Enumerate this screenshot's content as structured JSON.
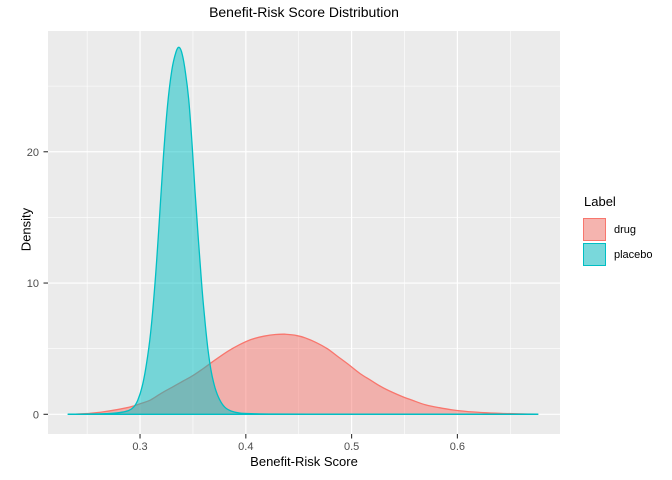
{
  "colors": {
    "background": "#FFFFFF",
    "panel": "#EBEBEB",
    "grid": "#FFFFFF",
    "tick_mark": "#333333",
    "tick_label": "#4D4D4D",
    "text": "#000000",
    "legend_key_bg": "#F2F2F2"
  },
  "chart_data": {
    "type": "area",
    "variant": "density",
    "title": "Benefit-Risk Score Distribution",
    "xlabel": "Benefit-Risk Score",
    "ylabel": "Density",
    "xlim": [
      0.213,
      0.697
    ],
    "ylim": [
      -1.5,
      29.2
    ],
    "grid": true,
    "x_ticks": [
      0.3,
      0.4,
      0.5,
      0.6
    ],
    "x_tick_labels": [
      "0.3",
      "0.4",
      "0.5",
      "0.6"
    ],
    "x_minor_ticks": [
      0.25,
      0.35,
      0.45,
      0.55,
      0.65
    ],
    "y_ticks": [
      0,
      10,
      20
    ],
    "y_tick_labels": [
      "0",
      "10",
      "20"
    ],
    "y_minor_ticks": [
      5,
      15,
      25
    ],
    "legend": {
      "title": "Label",
      "position": "right",
      "entries": [
        "drug",
        "placebo"
      ]
    },
    "series": [
      {
        "name": "drug",
        "color": "#F8766D",
        "fill_opacity": 0.5,
        "peak": {
          "x": 0.437,
          "density": 6.1
        },
        "points": [
          [
            0.24,
            0.02
          ],
          [
            0.252,
            0.07
          ],
          [
            0.265,
            0.18
          ],
          [
            0.278,
            0.35
          ],
          [
            0.29,
            0.55
          ],
          [
            0.3,
            0.8
          ],
          [
            0.31,
            1.1
          ],
          [
            0.32,
            1.6
          ],
          [
            0.33,
            2.05
          ],
          [
            0.34,
            2.5
          ],
          [
            0.35,
            2.95
          ],
          [
            0.36,
            3.5
          ],
          [
            0.372,
            4.2
          ],
          [
            0.383,
            4.8
          ],
          [
            0.394,
            5.3
          ],
          [
            0.405,
            5.7
          ],
          [
            0.417,
            5.95
          ],
          [
            0.428,
            6.08
          ],
          [
            0.437,
            6.1
          ],
          [
            0.447,
            6.02
          ],
          [
            0.457,
            5.8
          ],
          [
            0.467,
            5.45
          ],
          [
            0.477,
            5.0
          ],
          [
            0.487,
            4.4
          ],
          [
            0.497,
            3.8
          ],
          [
            0.508,
            3.1
          ],
          [
            0.518,
            2.6
          ],
          [
            0.528,
            2.1
          ],
          [
            0.538,
            1.7
          ],
          [
            0.548,
            1.35
          ],
          [
            0.558,
            1.05
          ],
          [
            0.57,
            0.72
          ],
          [
            0.583,
            0.5
          ],
          [
            0.596,
            0.33
          ],
          [
            0.61,
            0.21
          ],
          [
            0.625,
            0.12
          ],
          [
            0.645,
            0.06
          ],
          [
            0.662,
            0.03
          ],
          [
            0.676,
            0.015
          ]
        ]
      },
      {
        "name": "placebo",
        "color": "#00BFC4",
        "fill_opacity": 0.5,
        "peak": {
          "x": 0.337,
          "density": 27.95
        },
        "points": [
          [
            0.232,
            0.01
          ],
          [
            0.25,
            0.02
          ],
          [
            0.268,
            0.05
          ],
          [
            0.28,
            0.12
          ],
          [
            0.289,
            0.28
          ],
          [
            0.294,
            0.55
          ],
          [
            0.298,
            1.1
          ],
          [
            0.302,
            2.1
          ],
          [
            0.306,
            3.8
          ],
          [
            0.31,
            6.2
          ],
          [
            0.314,
            9.8
          ],
          [
            0.318,
            14.5
          ],
          [
            0.322,
            19.5
          ],
          [
            0.326,
            23.5
          ],
          [
            0.33,
            26.2
          ],
          [
            0.334,
            27.6
          ],
          [
            0.337,
            27.95
          ],
          [
            0.34,
            27.4
          ],
          [
            0.343,
            26.0
          ],
          [
            0.346,
            24.0
          ],
          [
            0.349,
            20.8
          ],
          [
            0.352,
            17.0
          ],
          [
            0.355,
            13.5
          ],
          [
            0.358,
            10.2
          ],
          [
            0.361,
            7.4
          ],
          [
            0.364,
            5.1
          ],
          [
            0.367,
            3.4
          ],
          [
            0.371,
            2.0
          ],
          [
            0.375,
            1.15
          ],
          [
            0.38,
            0.55
          ],
          [
            0.386,
            0.25
          ],
          [
            0.394,
            0.1
          ],
          [
            0.405,
            0.05
          ],
          [
            0.425,
            0.02
          ],
          [
            0.46,
            0.01
          ],
          [
            0.52,
            0.01
          ],
          [
            0.6,
            0.01
          ],
          [
            0.676,
            0.01
          ]
        ]
      }
    ]
  }
}
